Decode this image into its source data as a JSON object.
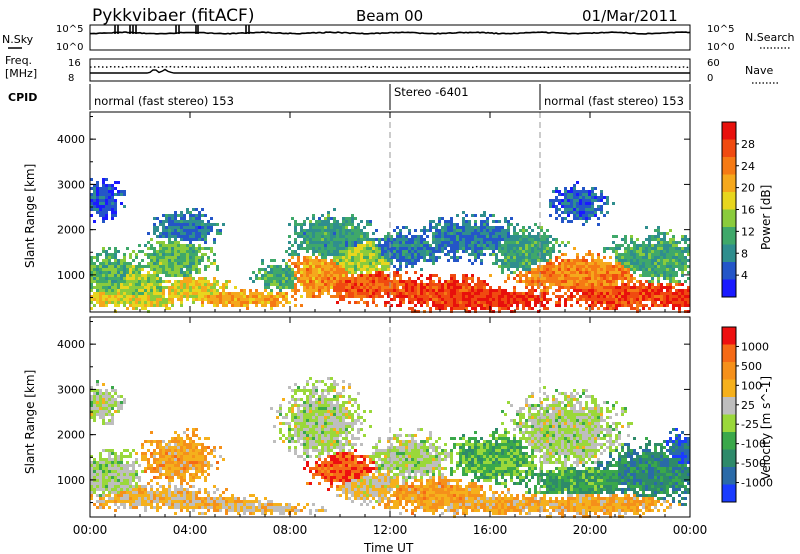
{
  "header": {
    "station": "Pykkvibaer (fitACF)",
    "beam": "Beam 00",
    "date": "01/Mar/2011"
  },
  "noise_panel": {
    "left_label": "N.Sky",
    "right_label": "N.Search",
    "left_ticks": [
      "10^5",
      "10^0"
    ],
    "right_ticks": [
      "10^5",
      "10^0"
    ]
  },
  "freq_panel": {
    "left_label_1": "Freq.",
    "left_label_2": "[MHz]",
    "right_label": "Nave",
    "left_ticks": [
      "16",
      "8"
    ],
    "right_ticks": [
      "60",
      "0"
    ]
  },
  "cpid_panel": {
    "label": "CPID",
    "modes": [
      "normal (fast stereo) 153",
      "Stereo -6401",
      "normal (fast stereo) 153"
    ]
  },
  "x_axis": {
    "label": "Time UT",
    "ticks": [
      "00:00",
      "04:00",
      "08:00",
      "12:00",
      "16:00",
      "20:00",
      "00:00"
    ]
  },
  "chart_data": [
    {
      "type": "heatmap",
      "quantity": "Power",
      "xlabel": "Time UT",
      "ylabel": "Slant Range [km]",
      "y_ticks": [
        "1000",
        "2000",
        "3000",
        "4000"
      ],
      "colorbar": {
        "label": "Power [dB]",
        "ticks": [
          "4",
          "8",
          "12",
          "16",
          "20",
          "24",
          "28"
        ],
        "colors": [
          "#1a1aff",
          "#2456c8",
          "#2f8e8e",
          "#3fa86a",
          "#8acb3c",
          "#e8d61e",
          "#f5a81c",
          "#f57a14",
          "#f04a10",
          "#e8100c"
        ]
      },
      "blobs": [
        {
          "x": 0.4,
          "y": 2700,
          "w": 0.9,
          "h": 450,
          "level": 0.1
        },
        {
          "x": 0.7,
          "y": 1000,
          "w": 1.2,
          "h": 600,
          "level": 0.35
        },
        {
          "x": 1.8,
          "y": 800,
          "w": 1.6,
          "h": 500,
          "level": 0.45
        },
        {
          "x": 1.6,
          "y": 500,
          "w": 3.0,
          "h": 250,
          "level": 0.55
        },
        {
          "x": 3.3,
          "y": 1400,
          "w": 1.6,
          "h": 500,
          "level": 0.38
        },
        {
          "x": 3.8,
          "y": 2050,
          "w": 1.4,
          "h": 400,
          "level": 0.18
        },
        {
          "x": 4.0,
          "y": 700,
          "w": 1.6,
          "h": 350,
          "level": 0.58
        },
        {
          "x": 6.0,
          "y": 500,
          "w": 2.6,
          "h": 200,
          "level": 0.7
        },
        {
          "x": 7.5,
          "y": 1000,
          "w": 1.0,
          "h": 350,
          "level": 0.32
        },
        {
          "x": 9.2,
          "y": 1050,
          "w": 1.6,
          "h": 550,
          "level": 0.72
        },
        {
          "x": 9.6,
          "y": 1800,
          "w": 1.8,
          "h": 600,
          "level": 0.28
        },
        {
          "x": 10.7,
          "y": 1400,
          "w": 1.6,
          "h": 500,
          "level": 0.48
        },
        {
          "x": 11.0,
          "y": 800,
          "w": 2.2,
          "h": 400,
          "level": 0.85
        },
        {
          "x": 12.6,
          "y": 1600,
          "w": 1.8,
          "h": 450,
          "level": 0.18
        },
        {
          "x": 13.7,
          "y": 650,
          "w": 2.6,
          "h": 400,
          "level": 0.92
        },
        {
          "x": 15.5,
          "y": 500,
          "w": 3.6,
          "h": 300,
          "level": 0.95
        },
        {
          "x": 15.1,
          "y": 1850,
          "w": 2.4,
          "h": 500,
          "level": 0.18
        },
        {
          "x": 17.3,
          "y": 1550,
          "w": 1.6,
          "h": 600,
          "level": 0.3
        },
        {
          "x": 19.5,
          "y": 2600,
          "w": 1.2,
          "h": 450,
          "level": 0.14
        },
        {
          "x": 19.6,
          "y": 1050,
          "w": 3.2,
          "h": 500,
          "level": 0.75
        },
        {
          "x": 21.3,
          "y": 600,
          "w": 3.0,
          "h": 350,
          "level": 0.9
        },
        {
          "x": 22.6,
          "y": 1400,
          "w": 2.2,
          "h": 600,
          "level": 0.32
        },
        {
          "x": 23.5,
          "y": 500,
          "w": 1.0,
          "h": 250,
          "level": 0.96
        }
      ]
    },
    {
      "type": "heatmap",
      "quantity": "Velocity",
      "xlabel": "Time UT",
      "ylabel": "Slant Range [km]",
      "y_ticks": [
        "1000",
        "2000",
        "3000",
        "4000"
      ],
      "colorbar": {
        "label": "Velocity [m s^-1]",
        "ticks": [
          "1000",
          "500",
          "100",
          "25",
          "-25",
          "-100",
          "-500",
          "-1000"
        ],
        "colors": [
          "#1a3cff",
          "#2a6aa8",
          "#2e8a6a",
          "#3aa84a",
          "#9ad83a",
          "#bebebe",
          "#f5b01c",
          "#f5901a",
          "#f56a16",
          "#ee1010"
        ]
      },
      "blobs": [
        {
          "x": 0.4,
          "y": 2700,
          "w": 0.9,
          "h": 450,
          "level": 0.5
        },
        {
          "x": 0.8,
          "y": 1100,
          "w": 1.4,
          "h": 600,
          "level": 0.48
        },
        {
          "x": 2.6,
          "y": 650,
          "w": 3.0,
          "h": 300,
          "level": 0.65
        },
        {
          "x": 3.5,
          "y": 1500,
          "w": 1.6,
          "h": 600,
          "level": 0.72
        },
        {
          "x": 4.8,
          "y": 500,
          "w": 2.6,
          "h": 200,
          "level": 0.66
        },
        {
          "x": 6.8,
          "y": 400,
          "w": 2.4,
          "h": 150,
          "level": 0.62
        },
        {
          "x": 9.2,
          "y": 2300,
          "w": 1.8,
          "h": 900,
          "level": 0.5
        },
        {
          "x": 10.1,
          "y": 1250,
          "w": 1.6,
          "h": 450,
          "level": 0.92
        },
        {
          "x": 11.2,
          "y": 900,
          "w": 1.6,
          "h": 450,
          "level": 0.6
        },
        {
          "x": 12.8,
          "y": 1500,
          "w": 1.8,
          "h": 550,
          "level": 0.5
        },
        {
          "x": 13.8,
          "y": 700,
          "w": 2.6,
          "h": 400,
          "level": 0.72
        },
        {
          "x": 15.9,
          "y": 500,
          "w": 3.4,
          "h": 250,
          "level": 0.68
        },
        {
          "x": 16.2,
          "y": 1500,
          "w": 2.2,
          "h": 600,
          "level": 0.35
        },
        {
          "x": 19.0,
          "y": 2100,
          "w": 2.4,
          "h": 900,
          "level": 0.5
        },
        {
          "x": 19.6,
          "y": 1000,
          "w": 2.6,
          "h": 400,
          "level": 0.3
        },
        {
          "x": 20.3,
          "y": 500,
          "w": 3.0,
          "h": 300,
          "level": 0.7
        },
        {
          "x": 22.5,
          "y": 1200,
          "w": 2.6,
          "h": 700,
          "level": 0.22
        },
        {
          "x": 23.6,
          "y": 1600,
          "w": 0.8,
          "h": 500,
          "level": 0.1
        }
      ]
    }
  ]
}
